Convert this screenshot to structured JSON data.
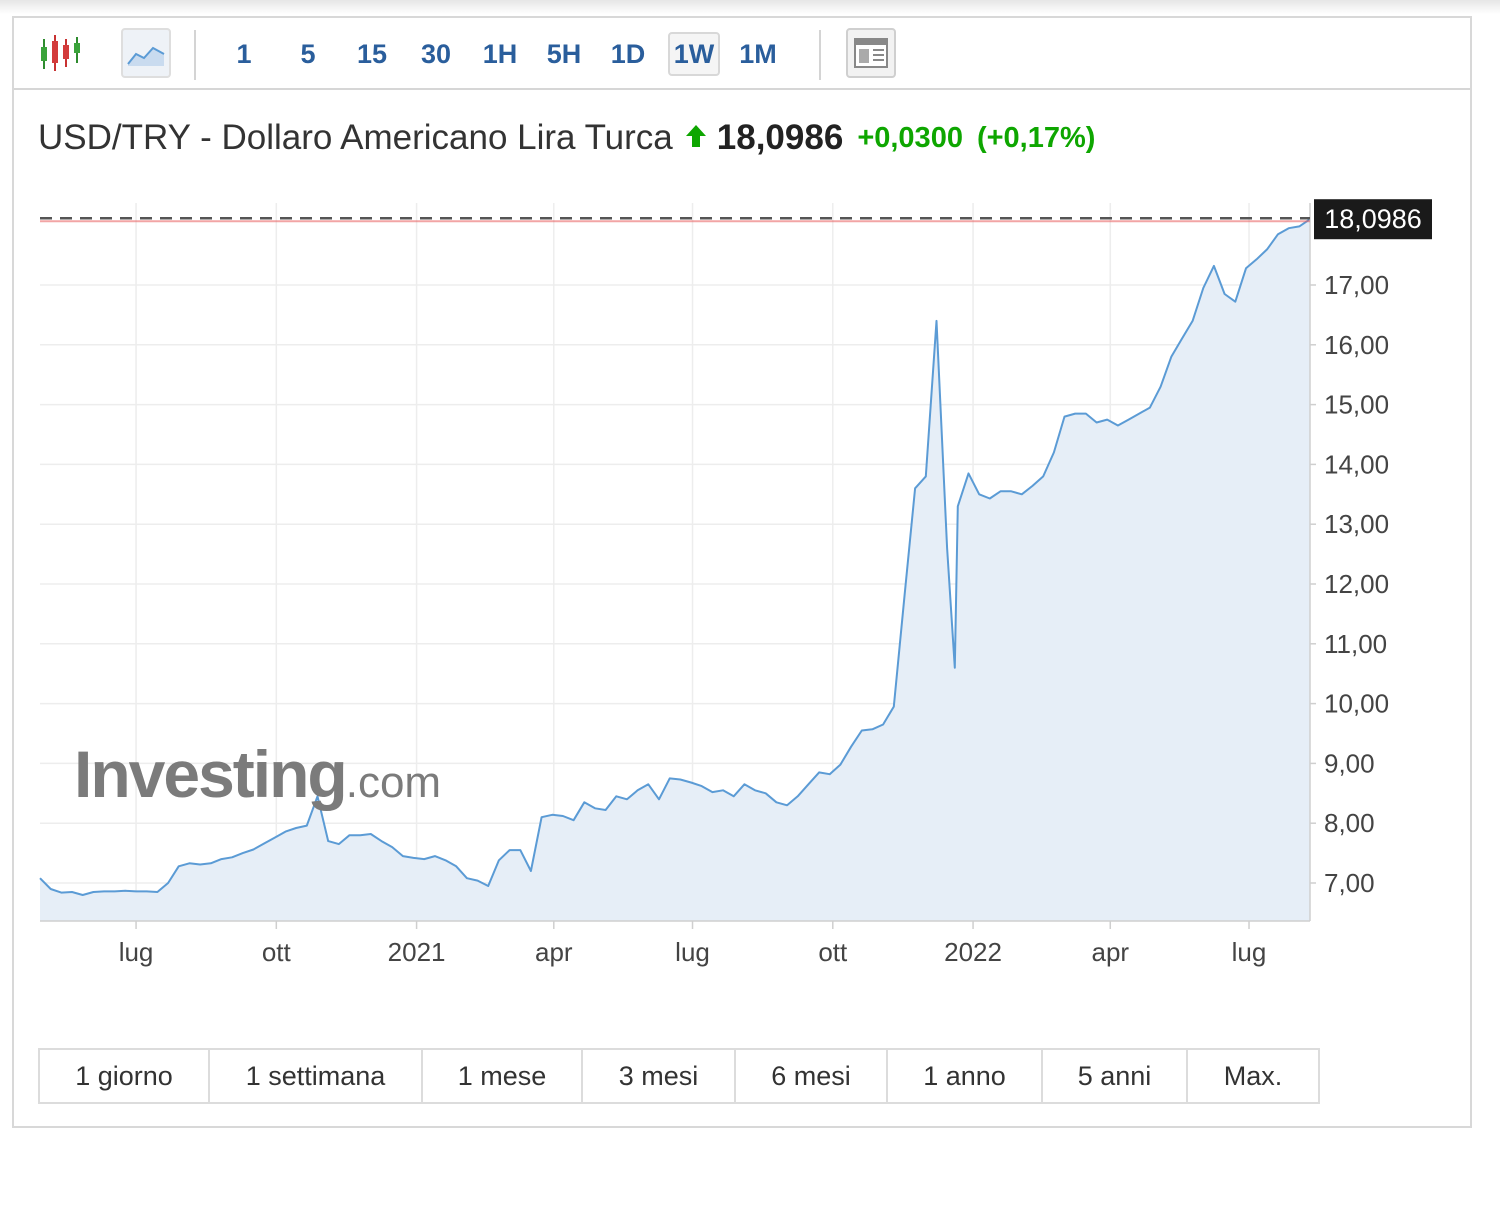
{
  "toolbar": {
    "intervals": [
      "1",
      "5",
      "15",
      "30",
      "1H",
      "5H",
      "1D",
      "1W",
      "1M"
    ],
    "active_interval": "1W"
  },
  "header": {
    "name": "USD/TRY - Dollaro Americano Lira Turca",
    "price": "18,0986",
    "change": "+0,0300",
    "change_pct": "(+0,17%)"
  },
  "watermark": {
    "brand": "Investing",
    "suffix": ".com"
  },
  "periods": [
    "1 giorno",
    "1 settimana",
    "1 mese",
    "3 mesi",
    "6 mesi",
    "1 anno",
    "5 anni",
    "Max."
  ],
  "colors": {
    "line": "#5b9bd5",
    "area": "#e6eef7",
    "up": "#0ea600",
    "last_marker": "#e85c5c",
    "price_tag_bg": "#1a1a1a"
  },
  "chart_data": {
    "type": "area",
    "title": "USD/TRY - Dollaro Americano Lira Turca",
    "ylim": [
      6.4,
      18.5
    ],
    "yticks": [
      7,
      8,
      9,
      10,
      11,
      12,
      13,
      14,
      15,
      16,
      17
    ],
    "ytick_labels": [
      "7,00",
      "8,00",
      "9,00",
      "10,00",
      "11,00",
      "12,00",
      "13,00",
      "14,00",
      "15,00",
      "16,00",
      "17,00"
    ],
    "xticks": [
      {
        "date": "2020-07-01",
        "label": "lug"
      },
      {
        "date": "2020-10-01",
        "label": "ott"
      },
      {
        "date": "2021-01-01",
        "label": "2021"
      },
      {
        "date": "2021-04-01",
        "label": "apr"
      },
      {
        "date": "2021-07-01",
        "label": "lug"
      },
      {
        "date": "2021-10-01",
        "label": "ott"
      },
      {
        "date": "2022-01-01",
        "label": "2022"
      },
      {
        "date": "2022-04-01",
        "label": "apr"
      },
      {
        "date": "2022-07-01",
        "label": "lug"
      }
    ],
    "grid": true,
    "last_value": "18,0986",
    "series": [
      {
        "x": [
          "2020-04-29",
          "2020-05-06",
          "2020-05-13",
          "2020-05-20",
          "2020-05-27",
          "2020-06-03",
          "2020-06-10",
          "2020-06-17",
          "2020-06-24",
          "2020-07-01",
          "2020-07-08",
          "2020-07-15",
          "2020-07-22",
          "2020-07-29",
          "2020-08-05",
          "2020-08-12",
          "2020-08-19",
          "2020-08-26",
          "2020-09-02",
          "2020-09-09",
          "2020-09-16",
          "2020-09-23",
          "2020-09-30",
          "2020-10-07",
          "2020-10-14",
          "2020-10-21",
          "2020-10-28",
          "2020-11-04",
          "2020-11-11",
          "2020-11-18",
          "2020-11-25",
          "2020-12-02",
          "2020-12-09",
          "2020-12-16",
          "2020-12-23",
          "2020-12-30",
          "2021-01-06",
          "2021-01-13",
          "2021-01-20",
          "2021-01-27",
          "2021-02-03",
          "2021-02-10",
          "2021-02-17",
          "2021-02-24",
          "2021-03-03",
          "2021-03-10",
          "2021-03-17",
          "2021-03-24",
          "2021-03-31",
          "2021-04-07",
          "2021-04-14",
          "2021-04-21",
          "2021-04-28",
          "2021-05-05",
          "2021-05-12",
          "2021-05-19",
          "2021-05-26",
          "2021-06-02",
          "2021-06-09",
          "2021-06-16",
          "2021-06-23",
          "2021-06-30",
          "2021-07-07",
          "2021-07-14",
          "2021-07-21",
          "2021-07-28",
          "2021-08-04",
          "2021-08-11",
          "2021-08-18",
          "2021-08-25",
          "2021-09-01",
          "2021-09-08",
          "2021-09-15",
          "2021-09-22",
          "2021-09-29",
          "2021-10-06",
          "2021-10-13",
          "2021-10-20",
          "2021-10-27",
          "2021-11-03",
          "2021-11-10",
          "2021-11-17",
          "2021-11-24",
          "2021-12-01",
          "2021-12-08",
          "2021-12-15",
          "2021-12-20",
          "2021-12-22",
          "2021-12-29",
          "2022-01-05",
          "2022-01-12",
          "2022-01-19",
          "2022-01-26",
          "2022-02-02",
          "2022-02-09",
          "2022-02-16",
          "2022-02-23",
          "2022-03-02",
          "2022-03-09",
          "2022-03-16",
          "2022-03-23",
          "2022-03-30",
          "2022-04-06",
          "2022-04-13",
          "2022-04-20",
          "2022-04-27",
          "2022-05-04",
          "2022-05-11",
          "2022-05-18",
          "2022-05-25",
          "2022-06-01",
          "2022-06-08",
          "2022-06-15",
          "2022-06-22",
          "2022-06-29",
          "2022-07-06",
          "2022-07-13",
          "2022-07-20",
          "2022-07-27",
          "2022-08-03",
          "2022-08-10"
        ],
        "y": [
          7.08,
          6.9,
          6.84,
          6.85,
          6.8,
          6.85,
          6.86,
          6.86,
          6.87,
          6.86,
          6.86,
          6.85,
          7.0,
          7.28,
          7.33,
          7.31,
          7.33,
          7.4,
          7.43,
          7.5,
          7.56,
          7.66,
          7.76,
          7.86,
          7.92,
          7.96,
          8.45,
          7.7,
          7.65,
          7.8,
          7.8,
          7.82,
          7.7,
          7.6,
          7.45,
          7.42,
          7.4,
          7.45,
          7.38,
          7.28,
          7.08,
          7.04,
          6.95,
          7.38,
          7.55,
          7.55,
          7.2,
          8.1,
          8.14,
          8.12,
          8.05,
          8.35,
          8.25,
          8.22,
          8.45,
          8.4,
          8.55,
          8.65,
          8.4,
          8.75,
          8.73,
          8.68,
          8.62,
          8.52,
          8.55,
          8.45,
          8.65,
          8.55,
          8.5,
          8.35,
          8.3,
          8.45,
          8.65,
          8.85,
          8.82,
          8.98,
          9.28,
          9.55,
          9.57,
          9.65,
          9.95,
          11.8,
          13.6,
          13.8,
          16.4,
          12.6,
          10.6,
          13.3,
          13.85,
          13.5,
          13.43,
          13.55,
          13.55,
          13.5,
          13.64,
          13.8,
          14.2,
          14.8,
          14.85,
          14.85,
          14.7,
          14.75,
          14.65,
          14.75,
          14.85,
          14.95,
          15.3,
          15.8,
          16.1,
          16.4,
          16.95,
          17.32,
          16.85,
          16.72,
          17.28,
          17.43,
          17.6,
          17.85,
          17.95,
          17.98,
          18.1
        ]
      }
    ]
  }
}
